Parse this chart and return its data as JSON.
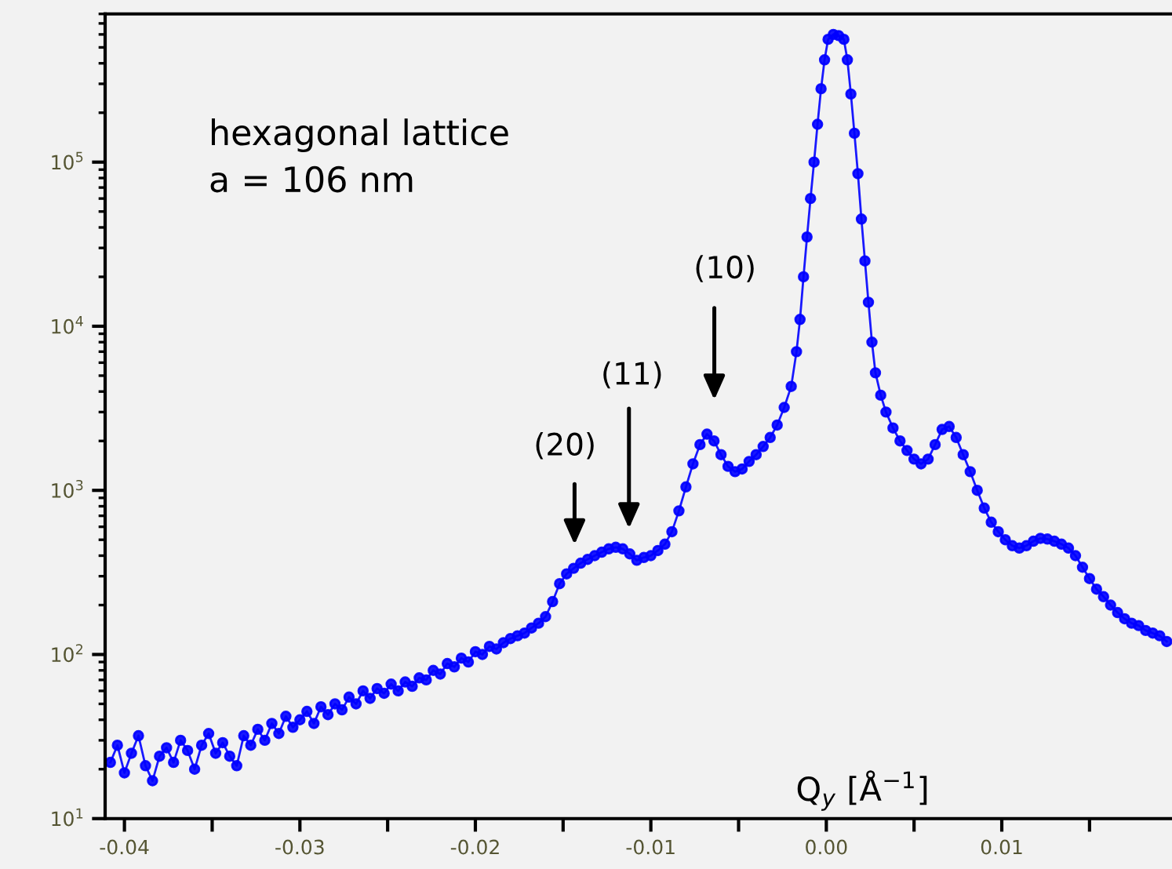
{
  "chart_data": {
    "type": "line",
    "xlabel": "Q$_{y}$ [Å$^{−1}$]",
    "log": "y",
    "grid": false,
    "marker": "circle",
    "line_style": "solid",
    "legend": false,
    "xlim": [
      -0.0411,
      0.0197
    ],
    "ylim": [
      10,
      800000
    ],
    "xticks": [
      {
        "value": -0.04,
        "label": "-0.04"
      },
      {
        "value": -0.035,
        "label": null
      },
      {
        "value": -0.03,
        "label": "-0.03"
      },
      {
        "value": -0.025,
        "label": null
      },
      {
        "value": -0.02,
        "label": "-0.02"
      },
      {
        "value": -0.015,
        "label": null
      },
      {
        "value": -0.01,
        "label": "-0.01"
      },
      {
        "value": -0.005,
        "label": null
      },
      {
        "value": 0,
        "label": "0.00"
      },
      {
        "value": 0.005,
        "label": null
      },
      {
        "value": 0.01,
        "label": "0.01"
      },
      {
        "value": 0.015,
        "label": null
      }
    ],
    "yticks": [
      {
        "value": 10,
        "label": "10$^{1}$"
      },
      {
        "value": 100,
        "label": "10$^{2}$"
      },
      {
        "value": 1000,
        "label": "10$^{3}$"
      },
      {
        "value": 10000,
        "label": "10$^{4}$"
      },
      {
        "value": 100000,
        "label": "10$^{5}$"
      }
    ],
    "annotations": [
      "hexagonal lattice\na = 106 nm",
      "(10)",
      "(11)",
      "(20)"
    ],
    "series": [
      {
        "color": "#0000ff",
        "x": [
          -0.0408,
          -0.0404,
          -0.04,
          -0.0396,
          -0.0392,
          -0.0388,
          -0.0384,
          -0.038,
          -0.0376,
          -0.0372,
          -0.0368,
          -0.0364,
          -0.036,
          -0.0356,
          -0.0352,
          -0.0348,
          -0.0344,
          -0.034,
          -0.0336,
          -0.0332,
          -0.0328,
          -0.0324,
          -0.032,
          -0.0316,
          -0.0312,
          -0.0308,
          -0.0304,
          -0.03,
          -0.0296,
          -0.0292,
          -0.0288,
          -0.0284,
          -0.028,
          -0.0276,
          -0.0272,
          -0.0268,
          -0.0264,
          -0.026,
          -0.0256,
          -0.0252,
          -0.0248,
          -0.0244,
          -0.024,
          -0.0236,
          -0.0232,
          -0.0228,
          -0.0224,
          -0.022,
          -0.0216,
          -0.0212,
          -0.0208,
          -0.0204,
          -0.02,
          -0.0196,
          -0.0192,
          -0.0188,
          -0.0184,
          -0.018,
          -0.0176,
          -0.0172,
          -0.0168,
          -0.0164,
          -0.016,
          -0.0156,
          -0.0152,
          -0.0148,
          -0.0144,
          -0.014,
          -0.0136,
          -0.0132,
          -0.0128,
          -0.0124,
          -0.012,
          -0.0116,
          -0.0112,
          -0.0108,
          -0.0104,
          -0.01,
          -0.0096,
          -0.0092,
          -0.0088,
          -0.0084,
          -0.008,
          -0.0076,
          -0.0072,
          -0.0068,
          -0.0064,
          -0.006,
          -0.0056,
          -0.0052,
          -0.0048,
          -0.0044,
          -0.004,
          -0.0036,
          -0.0032,
          -0.0028,
          -0.0024,
          -0.002,
          -0.0017,
          -0.0015,
          -0.0013,
          -0.0011,
          -0.0009,
          -0.0007,
          -0.0005,
          -0.0003,
          -0.0001,
          0.0001,
          0.0004,
          0.0007,
          0.001,
          0.0012,
          0.0014,
          0.0016,
          0.0018,
          0.002,
          0.0022,
          0.0024,
          0.0026,
          0.0028,
          0.0031,
          0.0034,
          0.0038,
          0.0042,
          0.0046,
          0.005,
          0.0054,
          0.0058,
          0.0062,
          0.0066,
          0.007,
          0.0074,
          0.0078,
          0.0082,
          0.0086,
          0.009,
          0.0094,
          0.0098,
          0.0102,
          0.0106,
          0.011,
          0.0114,
          0.0118,
          0.0122,
          0.0126,
          0.013,
          0.0134,
          0.0138,
          0.0142,
          0.0146,
          0.015,
          0.0154,
          0.0158,
          0.0162,
          0.0166,
          0.017,
          0.0174,
          0.0178,
          0.0182,
          0.0186,
          0.019,
          0.0194
        ],
        "values": [
          22,
          28,
          19,
          25,
          32,
          21,
          17,
          24,
          27,
          22,
          30,
          26,
          20,
          28,
          33,
          25,
          29,
          24,
          21,
          32,
          28,
          35,
          30,
          38,
          33,
          42,
          36,
          40,
          45,
          38,
          48,
          43,
          50,
          46,
          55,
          50,
          60,
          54,
          62,
          58,
          66,
          60,
          68,
          64,
          72,
          70,
          80,
          76,
          88,
          84,
          95,
          90,
          104,
          100,
          112,
          108,
          118,
          125,
          130,
          135,
          145,
          155,
          170,
          210,
          270,
          310,
          335,
          360,
          380,
          400,
          420,
          440,
          450,
          440,
          410,
          375,
          390,
          400,
          430,
          470,
          560,
          750,
          1050,
          1450,
          1900,
          2200,
          2000,
          1650,
          1400,
          1300,
          1350,
          1500,
          1650,
          1850,
          2100,
          2500,
          3200,
          4300,
          7000,
          11000,
          20000,
          35000,
          60000,
          100000,
          170000,
          280000,
          420000,
          560000,
          600000,
          590000,
          560000,
          420000,
          260000,
          150000,
          85000,
          45000,
          25000,
          14000,
          8000,
          5200,
          3800,
          3000,
          2400,
          2000,
          1750,
          1550,
          1450,
          1550,
          1900,
          2350,
          2450,
          2100,
          1650,
          1300,
          1000,
          780,
          640,
          560,
          500,
          460,
          445,
          460,
          490,
          510,
          505,
          490,
          470,
          445,
          400,
          340,
          290,
          250,
          225,
          200,
          180,
          165,
          155,
          150,
          140,
          135,
          130,
          120
        ]
      }
    ]
  }
}
